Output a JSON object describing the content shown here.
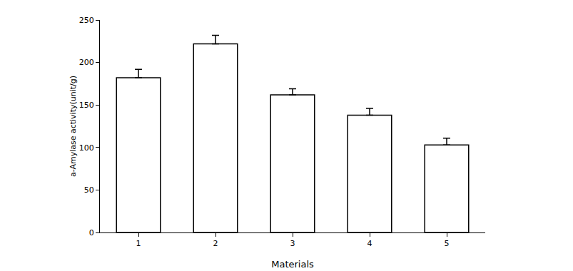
{
  "chart_data": {
    "type": "bar",
    "x_label": "Materials",
    "y_label": "a-Amylase activity(unit/g)",
    "categories": [
      "1",
      "2",
      "3",
      "4",
      "5"
    ],
    "values": [
      182,
      222,
      162,
      138,
      103
    ],
    "errors": [
      10,
      10,
      7,
      8,
      8
    ],
    "color": "#ffffff",
    "ylim": [
      0,
      250
    ],
    "yticks": [
      0,
      50,
      100,
      150,
      200,
      250
    ],
    "grid": false
  }
}
